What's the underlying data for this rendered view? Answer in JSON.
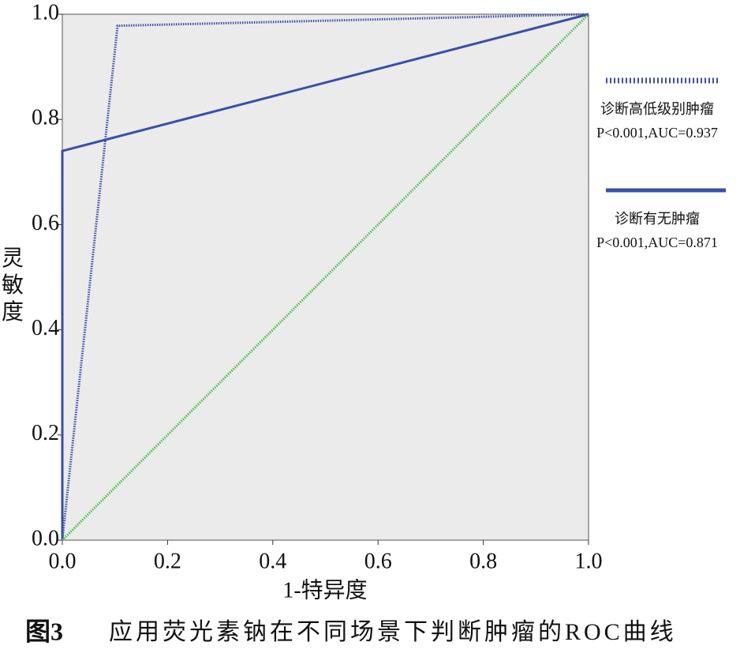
{
  "chart_data": {
    "type": "line",
    "x_label": "1-特异度",
    "y_label": "灵敏度",
    "figure_label": "图3",
    "caption": "应用荧光素钠在不同场景下判断肿瘤的ROC曲线",
    "xlim": [
      0,
      1
    ],
    "ylim": [
      0,
      1
    ],
    "xticks": [
      {
        "value": 0,
        "label": "0.0"
      },
      {
        "value": 0.2,
        "label": "0.2"
      },
      {
        "value": 0.4,
        "label": "0.4"
      },
      {
        "value": 0.6,
        "label": "0.6"
      },
      {
        "value": 0.8,
        "label": "0.8"
      },
      {
        "value": 1,
        "label": "1.0"
      }
    ],
    "yticks": [
      {
        "value": 0,
        "label": "0.0"
      },
      {
        "value": 0.2,
        "label": "0.2"
      },
      {
        "value": 0.4,
        "label": "0.4"
      },
      {
        "value": 0.6,
        "label": "0.6"
      },
      {
        "value": 0.8,
        "label": "0.8"
      },
      {
        "value": 1,
        "label": "1.0"
      }
    ],
    "series": [
      {
        "name": "诊断高低级别肿瘤",
        "stat_label": "P<0.001,AUC=0.937",
        "color": "#3b4fa8",
        "style": "dotted",
        "x": [
          0,
          0.105,
          1
        ],
        "values": [
          0,
          0.978,
          1
        ]
      },
      {
        "name": "诊断有无肿瘤",
        "stat_label": "P<0.001,AUC=0.871",
        "color": "#3b4fa8",
        "style": "solid",
        "x": [
          0,
          0,
          1
        ],
        "values": [
          0,
          0.74,
          1
        ]
      },
      {
        "color": "#4cbb4c",
        "style": "dotted",
        "x": [
          0,
          1
        ],
        "values": [
          0,
          1
        ]
      }
    ]
  }
}
